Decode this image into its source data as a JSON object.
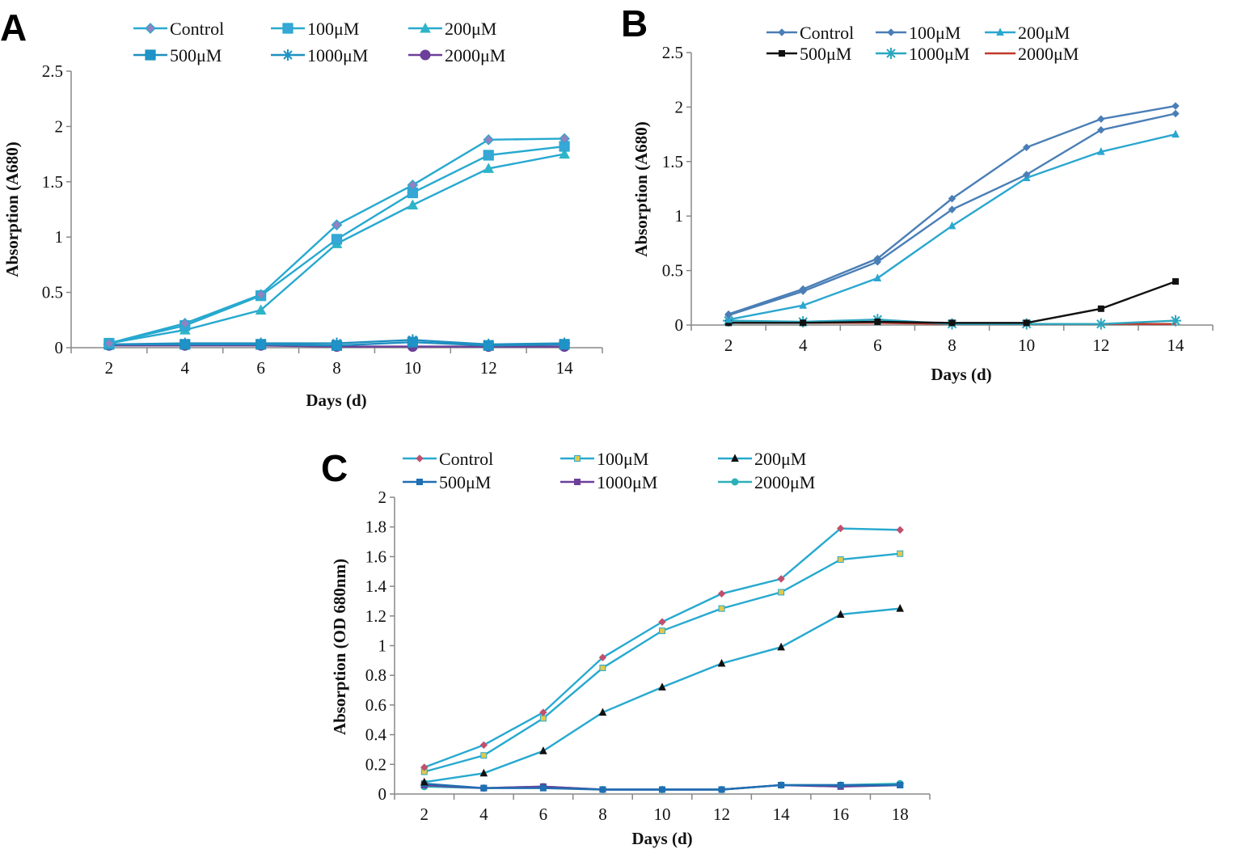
{
  "chart_data": [
    {
      "type": "line",
      "panel": "A",
      "title": "",
      "xlabel": "Days (d)",
      "ylabel": "Absorption (A680)",
      "x": [
        2,
        4,
        6,
        8,
        10,
        12,
        14
      ],
      "xticks": [
        "2",
        "4",
        "6",
        "8",
        "10",
        "12",
        "14"
      ],
      "yticks": [
        "0",
        "0.5",
        "1",
        "1.5",
        "2",
        "2.5"
      ],
      "ylim": [
        0,
        2.5
      ],
      "grid": false,
      "legend": "top",
      "series": [
        {
          "name": "Control",
          "color": "#27a9cf",
          "marker": "diamond",
          "marker_fill": "#8f83c2",
          "values": [
            0.04,
            0.22,
            0.48,
            1.11,
            1.47,
            1.88,
            1.89
          ]
        },
        {
          "name": "100μM",
          "color": "#27a9cf",
          "marker": "square",
          "marker_fill": "#36a7d6",
          "values": [
            0.04,
            0.2,
            0.47,
            0.98,
            1.4,
            1.74,
            1.82
          ]
        },
        {
          "name": "200μM",
          "color": "#27a9cf",
          "marker": "triangle",
          "marker_fill": "#2eb4c8",
          "values": [
            0.04,
            0.16,
            0.34,
            0.94,
            1.29,
            1.62,
            1.75
          ]
        },
        {
          "name": "500μM",
          "color": "#1f8fbf",
          "marker": "square",
          "marker_fill": "#1f93c8",
          "values": [
            0.03,
            0.03,
            0.03,
            0.02,
            0.05,
            0.02,
            0.03
          ]
        },
        {
          "name": "1000μM",
          "color": "#1f8fbf",
          "marker": "star",
          "marker_fill": "#1f93c8",
          "values": [
            0.03,
            0.04,
            0.04,
            0.04,
            0.07,
            0.03,
            0.04
          ]
        },
        {
          "name": "2000μM",
          "color": "#6b3f9a",
          "marker": "circle",
          "marker_fill": "#6b3f9a",
          "values": [
            0.02,
            0.02,
            0.02,
            0.01,
            0.01,
            0.01,
            0.01
          ]
        }
      ]
    },
    {
      "type": "line",
      "panel": "B",
      "title": "",
      "xlabel": "Days (d)",
      "ylabel": "Absorption (A680)",
      "x": [
        2,
        4,
        6,
        8,
        10,
        12,
        14
      ],
      "xticks": [
        "2",
        "4",
        "6",
        "8",
        "10",
        "12",
        "14"
      ],
      "yticks": [
        "0",
        "0.5",
        "1",
        "1.5",
        "2",
        "2.5"
      ],
      "ylim": [
        0,
        2.5
      ],
      "grid": false,
      "legend": "top",
      "series": [
        {
          "name": "Control",
          "color": "#4a7eb6",
          "marker": "diamond-small",
          "marker_fill": "#4a7eb6",
          "values": [
            0.1,
            0.33,
            0.61,
            1.16,
            1.63,
            1.89,
            2.01
          ]
        },
        {
          "name": "100μM",
          "color": "#4a7eb6",
          "marker": "diamond-small",
          "marker_fill": "#4a7eb6",
          "values": [
            0.09,
            0.31,
            0.58,
            1.06,
            1.38,
            1.79,
            1.94
          ]
        },
        {
          "name": "200μM",
          "color": "#2ba7d0",
          "marker": "triangle-small",
          "marker_fill": "#2ba7d0",
          "values": [
            0.05,
            0.18,
            0.43,
            0.91,
            1.35,
            1.59,
            1.75
          ]
        },
        {
          "name": "500μM",
          "color": "#111111",
          "marker": "square-small",
          "marker_fill": "#111111",
          "values": [
            0.02,
            0.02,
            0.03,
            0.02,
            0.02,
            0.15,
            0.4
          ]
        },
        {
          "name": "1000μM",
          "color": "#2ba7c0",
          "marker": "star",
          "marker_fill": "#2ba7c0",
          "values": [
            0.04,
            0.03,
            0.05,
            0.01,
            0.01,
            0.01,
            0.04
          ]
        },
        {
          "name": "2000μM",
          "color": "#c0392b",
          "marker": "none",
          "marker_fill": "#c0392b",
          "values": [
            0.02,
            0.02,
            0.02,
            0.01,
            0.01,
            0.01,
            0.01
          ]
        }
      ]
    },
    {
      "type": "line",
      "panel": "C",
      "title": "",
      "xlabel": "Days (d)",
      "ylabel": "Absorption (OD 680nm)",
      "x": [
        2,
        4,
        6,
        8,
        10,
        12,
        14,
        16,
        18
      ],
      "xticks": [
        "2",
        "4",
        "6",
        "8",
        "10",
        "12",
        "14",
        "16",
        "18"
      ],
      "yticks": [
        "0",
        "0.2",
        "0.4",
        "0.6",
        "0.8",
        "1",
        "1.2",
        "1.4",
        "1.6",
        "1.8",
        "2"
      ],
      "ylim": [
        0,
        2
      ],
      "grid": false,
      "legend": "top",
      "series": [
        {
          "name": "Control",
          "color": "#27a9cf",
          "marker": "diamond-small",
          "marker_fill": "#c0506e",
          "values": [
            0.18,
            0.33,
            0.55,
            0.92,
            1.16,
            1.35,
            1.45,
            1.79,
            1.78
          ]
        },
        {
          "name": "100μM",
          "color": "#27a9cf",
          "marker": "square-small",
          "marker_fill": "#e2c84a",
          "values": [
            0.15,
            0.26,
            0.51,
            0.85,
            1.1,
            1.25,
            1.36,
            1.58,
            1.62
          ]
        },
        {
          "name": "200μM",
          "color": "#27a9cf",
          "marker": "triangle-small",
          "marker_fill": "#111111",
          "values": [
            0.08,
            0.14,
            0.29,
            0.55,
            0.72,
            0.88,
            0.99,
            1.21,
            1.25
          ]
        },
        {
          "name": "500μM",
          "color": "#1f6fb2",
          "marker": "square-small",
          "marker_fill": "#1f6fb2",
          "values": [
            0.07,
            0.04,
            0.04,
            0.03,
            0.03,
            0.03,
            0.06,
            0.06,
            0.06
          ]
        },
        {
          "name": "1000μM",
          "color": "#6b3f9a",
          "marker": "square-small",
          "marker_fill": "#6b3f9a",
          "values": [
            0.06,
            0.04,
            0.05,
            0.03,
            0.03,
            0.03,
            0.06,
            0.05,
            0.06
          ]
        },
        {
          "name": "2000μM",
          "color": "#2ab0b8",
          "marker": "circle-small",
          "marker_fill": "#2ab0b8",
          "values": [
            0.05,
            0.04,
            0.05,
            0.03,
            0.03,
            0.03,
            0.06,
            0.06,
            0.07
          ]
        }
      ]
    }
  ]
}
